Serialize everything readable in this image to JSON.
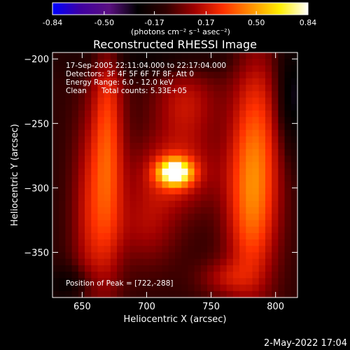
{
  "colorbar": {
    "tick_labels": [
      "-0.84",
      "-0.50",
      "-0.17",
      "0.17",
      "0.50",
      "0.84"
    ],
    "tick_values": [
      -0.84,
      -0.5,
      -0.17,
      0.17,
      0.5,
      0.84
    ],
    "range": [
      -0.84,
      0.84
    ],
    "units_text": "(photons cm⁻² s⁻¹ asec⁻²)",
    "colors": [
      "#0000ff",
      "#4000a0",
      "#5a1080",
      "#000000",
      "#300000",
      "#a00000",
      "#ff3000",
      "#ff9000",
      "#ffee00",
      "#ffffff"
    ]
  },
  "chart_data": {
    "type": "heatmap",
    "title": "Reconstructed RHESSI Image",
    "xlabel": "Heliocentric X (arcsec)",
    "ylabel": "Heliocentric Y (arcsec)",
    "xlim": [
      627,
      817
    ],
    "ylim": [
      -385,
      -195
    ],
    "x_ticks": [
      650,
      700,
      750,
      800
    ],
    "y_ticks": [
      -200,
      -250,
      -300,
      -350
    ],
    "x_tick_labels": [
      "650",
      "700",
      "750",
      "800"
    ],
    "y_tick_labels": [
      "−200",
      "−250",
      "−300",
      "−350"
    ],
    "peak": [
      722,
      -288
    ],
    "info": {
      "time": "17-Sep-2005 22:11:04.000 to 22:17:04.000",
      "detectors": "Detectors: 3F 4F 5F 6F 7F 8F, Att 0",
      "energy": "Energy Range: 6.0 - 12.0 keV",
      "method": "Clean",
      "counts": "Total counts: 5.33E+05",
      "peak_text": "Position of Peak = [722,-288]"
    },
    "sources": [
      {
        "x": 722,
        "y": -288,
        "sx": 9,
        "sy": 7,
        "value": 0.84
      },
      {
        "x": 722,
        "y": -288,
        "sx": 22,
        "sy": 20,
        "value": 0.32
      },
      {
        "x": 670,
        "y": -270,
        "sx": 9,
        "sy": 70,
        "value": 0.4
      },
      {
        "x": 655,
        "y": -320,
        "sx": 10,
        "sy": 55,
        "value": 0.24
      },
      {
        "x": 730,
        "y": -235,
        "sx": 18,
        "sy": 22,
        "value": 0.26
      },
      {
        "x": 700,
        "y": -330,
        "sx": 18,
        "sy": 22,
        "value": 0.2
      },
      {
        "x": 785,
        "y": -265,
        "sx": 14,
        "sy": 55,
        "value": 0.38
      },
      {
        "x": 780,
        "y": -325,
        "sx": 14,
        "sy": 45,
        "value": 0.3
      },
      {
        "x": 760,
        "y": -370,
        "sx": 15,
        "sy": 10,
        "value": 0.18
      },
      {
        "x": 700,
        "y": -200,
        "sx": 45,
        "sy": 10,
        "value": -0.15
      },
      {
        "x": 812,
        "y": -230,
        "sx": 8,
        "sy": 30,
        "value": -0.25
      },
      {
        "x": 640,
        "y": -375,
        "sx": 14,
        "sy": 10,
        "value": -0.18
      }
    ]
  },
  "footer": {
    "date": "2-May-2022 17:04"
  }
}
